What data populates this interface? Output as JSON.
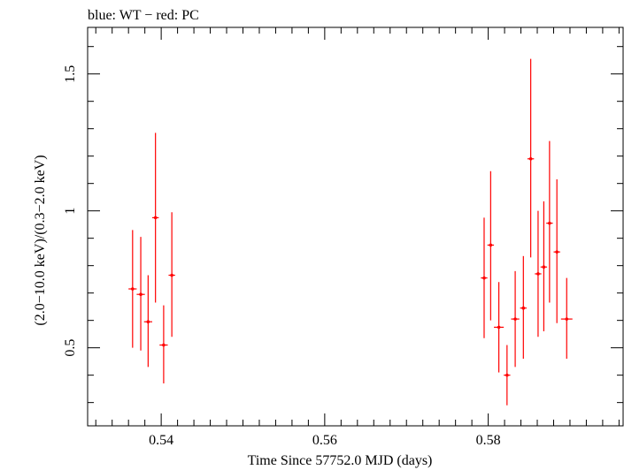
{
  "chart_data": {
    "type": "scatter",
    "title": "blue: WT − red: PC",
    "xlabel": "Time Since 57752.0 MJD (days)",
    "ylabel": "(2.0−10.0 keV)/(0.3−2.0 keV)",
    "xlim": [
      0.531,
      0.5965
    ],
    "ylim": [
      0.215,
      1.67
    ],
    "x_ticks": [
      {
        "value": 0.54,
        "label": "0.54"
      },
      {
        "value": 0.56,
        "label": "0.56"
      },
      {
        "value": 0.58,
        "label": "0.58"
      }
    ],
    "y_ticks": [
      {
        "value": 0.5,
        "label": "0.5"
      },
      {
        "value": 1.0,
        "label": "1"
      },
      {
        "value": 1.5,
        "label": "1.5"
      }
    ],
    "grid": false,
    "series": [
      {
        "color": "#ff0000",
        "points": [
          {
            "x": 0.5365,
            "xerr": 0.0005,
            "y": 0.715,
            "ylo": 0.5,
            "yhi": 0.93
          },
          {
            "x": 0.5375,
            "xerr": 0.0005,
            "y": 0.695,
            "ylo": 0.49,
            "yhi": 0.905
          },
          {
            "x": 0.5384,
            "xerr": 0.0005,
            "y": 0.595,
            "ylo": 0.43,
            "yhi": 0.765
          },
          {
            "x": 0.5393,
            "xerr": 0.0004,
            "y": 0.975,
            "ylo": 0.665,
            "yhi": 1.285
          },
          {
            "x": 0.5403,
            "xerr": 0.0005,
            "y": 0.51,
            "ylo": 0.37,
            "yhi": 0.655
          },
          {
            "x": 0.5413,
            "xerr": 0.0004,
            "y": 0.765,
            "ylo": 0.54,
            "yhi": 0.995
          },
          {
            "x": 0.5795,
            "xerr": 0.0004,
            "y": 0.755,
            "ylo": 0.535,
            "yhi": 0.975
          },
          {
            "x": 0.5803,
            "xerr": 0.0004,
            "y": 0.875,
            "ylo": 0.6,
            "yhi": 1.145
          },
          {
            "x": 0.5813,
            "xerr": 0.0006,
            "y": 0.575,
            "ylo": 0.41,
            "yhi": 0.74
          },
          {
            "x": 0.5823,
            "xerr": 0.0004,
            "y": 0.4,
            "ylo": 0.29,
            "yhi": 0.51
          },
          {
            "x": 0.5833,
            "xerr": 0.0005,
            "y": 0.605,
            "ylo": 0.43,
            "yhi": 0.78
          },
          {
            "x": 0.5843,
            "xerr": 0.0004,
            "y": 0.645,
            "ylo": 0.46,
            "yhi": 0.835
          },
          {
            "x": 0.5852,
            "xerr": 0.0004,
            "y": 1.19,
            "ylo": 0.83,
            "yhi": 1.555
          },
          {
            "x": 0.5861,
            "xerr": 0.0004,
            "y": 0.77,
            "ylo": 0.54,
            "yhi": 1.0
          },
          {
            "x": 0.5868,
            "xerr": 0.0004,
            "y": 0.795,
            "ylo": 0.56,
            "yhi": 1.035
          },
          {
            "x": 0.5875,
            "xerr": 0.0004,
            "y": 0.955,
            "ylo": 0.665,
            "yhi": 1.255
          },
          {
            "x": 0.5884,
            "xerr": 0.0004,
            "y": 0.85,
            "ylo": 0.59,
            "yhi": 1.115
          },
          {
            "x": 0.5896,
            "xerr": 0.0007,
            "y": 0.605,
            "ylo": 0.46,
            "yhi": 0.755
          }
        ]
      }
    ]
  }
}
